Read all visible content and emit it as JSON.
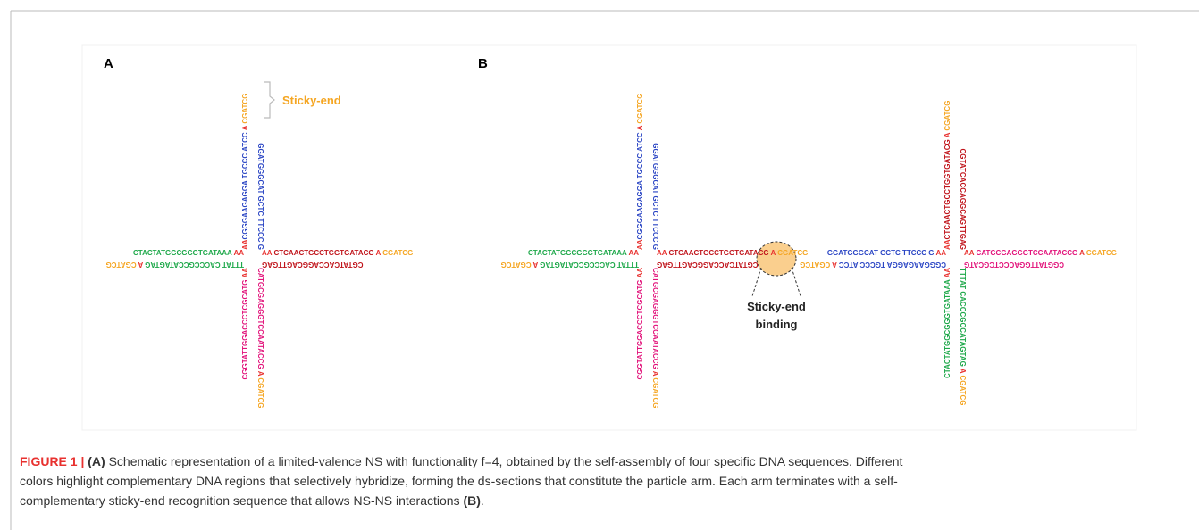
{
  "colors": {
    "red": "#e8312f",
    "blue": "#2a45c4",
    "darkred": "#c0141b",
    "green": "#1ea84a",
    "pink": "#e2127a",
    "orange": "#f5a623"
  },
  "panel_a": {
    "label": "A",
    "annotation": "Sticky-end",
    "star": {
      "up": {
        "a": [
          {
            "text": "AA",
            "color": "red"
          },
          {
            "text": "CGGGAAGAGGA TGCCC ATCC",
            "color": "blue"
          },
          {
            "text": " A ",
            "color": "red"
          },
          {
            "text": "CGATCG",
            "color": "orange"
          }
        ],
        "b": [
          {
            "text": "GGATGGGCAT GCTC TTCCC G",
            "color": "blue"
          }
        ]
      },
      "right": {
        "a": [
          {
            "text": "AA ",
            "color": "red"
          },
          {
            "text": "CTCAACTGCCTGGTGATACG",
            "color": "darkred"
          },
          {
            "text": " A ",
            "color": "red"
          },
          {
            "text": "CGATCG",
            "color": "orange"
          }
        ],
        "b": [
          {
            "text": "CGTATCACCAGGCAGTTGAG",
            "color": "darkred"
          }
        ]
      },
      "left": {
        "a": [
          {
            "text": "CTACTATGGCGGGTGATAAA",
            "color": "green"
          },
          {
            "text": " AA",
            "color": "red"
          }
        ],
        "b": [
          {
            "text": "TTTAT CACCCGCCATAGTAG",
            "color": "green"
          },
          {
            "text": " A ",
            "color": "red"
          },
          {
            "text": "CGATCG",
            "color": "orange"
          }
        ]
      },
      "down": {
        "a": [
          {
            "text": "CGGTATTGGACCCTCGCATG",
            "color": "pink"
          },
          {
            "text": " AA",
            "color": "red"
          }
        ],
        "b": [
          {
            "text": "CATGCGAGGGTCCAATACCG",
            "color": "pink"
          },
          {
            "text": " A ",
            "color": "red"
          },
          {
            "text": "CGATCG",
            "color": "orange"
          }
        ]
      }
    }
  },
  "panel_b": {
    "label": "B",
    "annotation": [
      "Sticky-end",
      "binding"
    ],
    "stars": [
      {
        "up": {
          "a": [
            {
              "text": "AA",
              "color": "red"
            },
            {
              "text": "CGGGAAGAGGA TGCCC ATCC",
              "color": "blue"
            },
            {
              "text": " A ",
              "color": "red"
            },
            {
              "text": "CGATCG",
              "color": "orange"
            }
          ],
          "b": [
            {
              "text": "GGATGGGCAT GCTC TTCCC G",
              "color": "blue"
            }
          ]
        },
        "right": {
          "a": [
            {
              "text": "AA ",
              "color": "red"
            },
            {
              "text": "CTCAACTGCCTGGTGATACG",
              "color": "darkred"
            },
            {
              "text": " A ",
              "color": "red"
            },
            {
              "text": "CGATCG",
              "color": "orange"
            }
          ],
          "b": [
            {
              "text": "CGTATCACCAGGCAGTTGAG",
              "color": "darkred"
            }
          ]
        },
        "left": {
          "a": [
            {
              "text": "CTACTATGGCGGGTGATAAA",
              "color": "green"
            },
            {
              "text": " AA",
              "color": "red"
            }
          ],
          "b": [
            {
              "text": "TTTAT CACCCGCCATAGTAG",
              "color": "green"
            },
            {
              "text": " A ",
              "color": "red"
            },
            {
              "text": "CGATCG",
              "color": "orange"
            }
          ]
        },
        "down": {
          "a": [
            {
              "text": "CGGTATTGGACCCTCGCATG",
              "color": "pink"
            },
            {
              "text": " AA",
              "color": "red"
            }
          ],
          "b": [
            {
              "text": "CATGCGAGGGTCCAATACCG",
              "color": "pink"
            },
            {
              "text": " A ",
              "color": "red"
            },
            {
              "text": "CGATCG",
              "color": "orange"
            }
          ]
        }
      },
      {
        "up": {
          "a": [
            {
              "text": "AA",
              "color": "red"
            },
            {
              "text": "CTCAACTGCCTGGTGATACG",
              "color": "darkred"
            },
            {
              "text": " A ",
              "color": "red"
            },
            {
              "text": "CGATCG",
              "color": "orange"
            }
          ],
          "b": [
            {
              "text": "CGTATCACCAGGCAGTTGAG",
              "color": "darkred"
            }
          ]
        },
        "right": {
          "a": [
            {
              "text": "AA ",
              "color": "red"
            },
            {
              "text": "CATGCGAGGGTCCAATACCG",
              "color": "pink"
            },
            {
              "text": " A ",
              "color": "red"
            },
            {
              "text": "CGATCG",
              "color": "orange"
            }
          ],
          "b": [
            {
              "text": "CGGTATTGGACCCTCGCATG",
              "color": "pink"
            }
          ]
        },
        "left": {
          "a": [
            {
              "text": "GGATGGGCAT GCTC TTCCC G",
              "color": "blue"
            },
            {
              "text": " AA",
              "color": "red"
            }
          ],
          "b": [
            {
              "text": "CGGGAAGAGGA TGCCC ATCC",
              "color": "blue"
            },
            {
              "text": " A ",
              "color": "red"
            },
            {
              "text": "CGATCG",
              "color": "orange"
            }
          ]
        },
        "down": {
          "a": [
            {
              "text": "CTACTATGGCGGGTGATAAA",
              "color": "green"
            },
            {
              "text": " AA",
              "color": "red"
            }
          ],
          "b": [
            {
              "text": "TTTAT CACCCGCCATAGTAG",
              "color": "green"
            },
            {
              "text": " A ",
              "color": "red"
            },
            {
              "text": "CGATCG",
              "color": "orange"
            }
          ]
        }
      }
    ]
  },
  "caption": {
    "label": "FIGURE 1 |",
    "panel_a": "(A)",
    "lines": [
      "Schematic representation of a limited-valence NS with functionality f=4, obtained by the self-assembly of four specific DNA sequences. Different",
      "colors highlight complementary DNA regions that selectively hybridize, forming the ds-sections that constitute the particle arm. Each arm terminates with a self-",
      "complementary sticky-end recognition sequence that allows NS-NS interactions"
    ],
    "panel_b": "(B)",
    "tail": "."
  }
}
